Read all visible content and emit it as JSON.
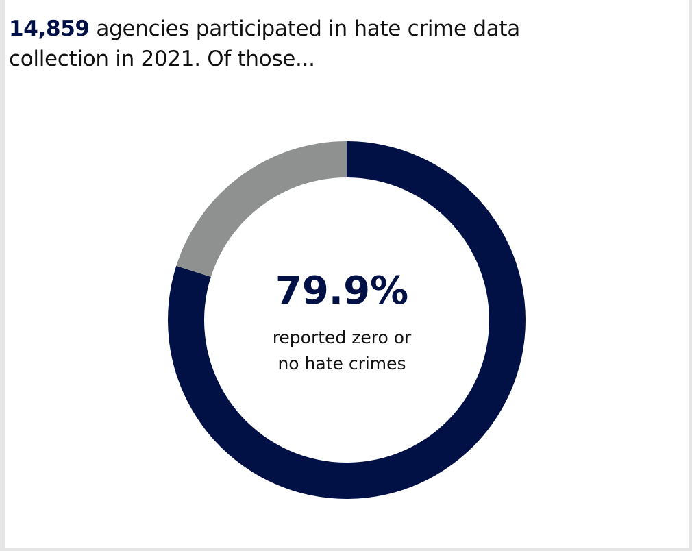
{
  "headline": {
    "number": "14,859",
    "text": " agencies participated in hate crime data collection in 2021. Of those..."
  },
  "chart_data": {
    "type": "pie",
    "subtype": "donut",
    "slices": [
      {
        "value": 79.9,
        "color": "#021145"
      },
      {
        "value": 20.1,
        "color": "#8f9190"
      }
    ],
    "center_value": "79.9%",
    "center_label_lines": [
      "reported zero or",
      "no hate crimes"
    ]
  }
}
